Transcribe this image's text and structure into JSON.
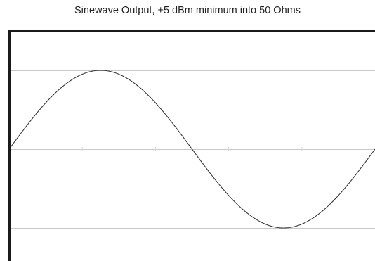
{
  "chart_data": {
    "type": "line",
    "title": "Sinewave Output, +5 dBm minimum into 50 Ohms",
    "xlabel": "",
    "ylabel": "",
    "grid": true,
    "series": [
      {
        "x": [
          0,
          0.05,
          0.1,
          0.15,
          0.2,
          0.25,
          0.3,
          0.35,
          0.4,
          0.45,
          0.5,
          0.55,
          0.6,
          0.65,
          0.7,
          0.75,
          0.8,
          0.85,
          0.9,
          0.95,
          1.0
        ],
        "values": [
          0,
          0.309,
          0.588,
          0.809,
          0.951,
          1.0,
          0.951,
          0.809,
          0.588,
          0.309,
          0,
          -0.309,
          -0.588,
          -0.809,
          -0.951,
          -1.0,
          -0.951,
          -0.809,
          -0.588,
          -0.309,
          0
        ]
      }
    ],
    "xlim": [
      0,
      1
    ],
    "ylim": [
      -1.4,
      1.4
    ],
    "y_gridlines": [
      -1,
      -0.5,
      0,
      0.5,
      1
    ]
  }
}
